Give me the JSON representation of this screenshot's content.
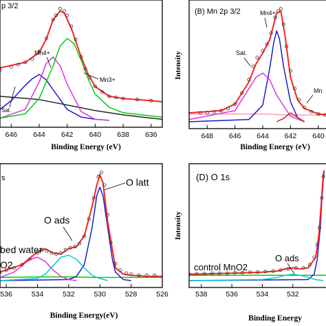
{
  "chart_data": [
    {
      "panel": "A",
      "type": "line",
      "title": "p 3/2",
      "xlabel": "Binding Energy (eV)",
      "ylabel": "",
      "xlim": [
        646.8,
        635.2
      ],
      "ylim": [
        0,
        1.05
      ],
      "x_ticks": [
        "646",
        "644",
        "642",
        "640",
        "638",
        "636"
      ],
      "annotations": [
        "Sat.",
        "Mn4+",
        "Mn3+"
      ],
      "series": [
        {
          "color": "#ff2020",
          "role": "envelope",
          "x": [
            646.8,
            645,
            644,
            643.5,
            643,
            642.5,
            642.2,
            641.7,
            641,
            640.5,
            640,
            639,
            638,
            636,
            635.2
          ],
          "y": [
            0.48,
            0.53,
            0.62,
            0.74,
            0.92,
            1.0,
            0.98,
            0.84,
            0.58,
            0.42,
            0.31,
            0.22,
            0.2,
            0.18,
            0.17
          ]
        },
        {
          "color": "#1a1acc",
          "role": "component",
          "x": [
            646.8,
            646,
            645,
            644.5,
            644,
            643.5,
            643,
            642,
            641,
            640,
            639
          ],
          "y": [
            0.1,
            0.18,
            0.32,
            0.38,
            0.42,
            0.37,
            0.28,
            0.1,
            0.03,
            0.01,
            0
          ]
        },
        {
          "color": "#dd33dd",
          "role": "component",
          "x": [
            646.8,
            645,
            644,
            643.5,
            643,
            642.5,
            642,
            641,
            640,
            639
          ],
          "y": [
            0.02,
            0.1,
            0.35,
            0.52,
            0.58,
            0.5,
            0.33,
            0.08,
            0.01,
            0
          ]
        },
        {
          "color": "#00cc00",
          "role": "component",
          "x": [
            646.8,
            645,
            644,
            643,
            642.5,
            642,
            641.5,
            641,
            640.5,
            640,
            639,
            638,
            636,
            635.2
          ],
          "y": [
            0.02,
            0.06,
            0.2,
            0.5,
            0.68,
            0.75,
            0.7,
            0.55,
            0.38,
            0.24,
            0.12,
            0.07,
            0.04,
            0.03
          ]
        },
        {
          "color": "#222222",
          "role": "background",
          "x": [
            646.8,
            644,
            642,
            640,
            638,
            636,
            635.2
          ],
          "y": [
            0.22,
            0.19,
            0.14,
            0.09,
            0.05,
            0.02,
            0.01
          ]
        }
      ],
      "markers": {
        "x": [
          646.8,
          646,
          645.5,
          645,
          644.5,
          644,
          643.5,
          643,
          642.8,
          642.5,
          642.2,
          642,
          641.7,
          641.4,
          641,
          640.7,
          640.4,
          640,
          639.5,
          639,
          638.5,
          638,
          637,
          636
        ],
        "y": [
          0.46,
          0.49,
          0.51,
          0.53,
          0.56,
          0.63,
          0.75,
          0.92,
          0.96,
          1.02,
          1.0,
          0.96,
          0.86,
          0.74,
          0.58,
          0.47,
          0.39,
          0.31,
          0.26,
          0.22,
          0.21,
          0.2,
          0.19,
          0.18
        ]
      }
    },
    {
      "panel": "B",
      "type": "line",
      "title": "(B) Mn 2p 3/2",
      "xlabel": "Binding Energy (eV)",
      "ylabel": "Intensity",
      "xlim": [
        649.3,
        639.2
      ],
      "ylim": [
        0,
        1.05
      ],
      "x_ticks": [
        "648",
        "646",
        "644",
        "642",
        "640"
      ],
      "annotations": [
        "Mn4+",
        "Sat.",
        "Mn"
      ],
      "series": [
        {
          "color": "#ff2020",
          "role": "envelope",
          "x": [
            649.3,
            647,
            646,
            645,
            644.5,
            644,
            643.5,
            643,
            642.7,
            642.4,
            642,
            641.5,
            641,
            640,
            639.2
          ],
          "y": [
            0.08,
            0.1,
            0.16,
            0.36,
            0.52,
            0.62,
            0.74,
            0.98,
            1.0,
            0.78,
            0.4,
            0.2,
            0.12,
            0.07,
            0.06
          ]
        },
        {
          "color": "#1a1acc",
          "role": "component",
          "x": [
            649.3,
            645,
            644,
            643.5,
            643.2,
            643,
            642.8,
            642.5,
            642,
            641.5,
            641
          ],
          "y": [
            0,
            0.02,
            0.15,
            0.48,
            0.72,
            0.82,
            0.75,
            0.5,
            0.18,
            0.04,
            0
          ]
        },
        {
          "color": "#dd33dd",
          "role": "component",
          "x": [
            649.3,
            646,
            645,
            644.5,
            644,
            643.5,
            643,
            642,
            641
          ],
          "y": [
            0.02,
            0.1,
            0.3,
            0.4,
            0.44,
            0.38,
            0.24,
            0.05,
            0
          ]
        },
        {
          "color": "#cc2222",
          "role": "component",
          "x": [
            643,
            642.5,
            642,
            641.5,
            641
          ],
          "y": [
            0,
            0.03,
            0.08,
            0.04,
            0
          ]
        },
        {
          "color": "#ff99bb",
          "role": "background",
          "x": [
            649.3,
            646,
            644,
            642,
            640,
            639.2
          ],
          "y": [
            0.07,
            0.07,
            0.07,
            0.06,
            0.06,
            0.06
          ]
        }
      ],
      "markers": {
        "x": [
          648.5,
          648,
          647.5,
          647,
          646.5,
          646,
          645.5,
          645,
          644.7,
          644.4,
          644,
          643.7,
          643.4,
          643.1,
          642.9,
          642.7,
          642.5,
          642.3,
          642,
          641.7,
          641.4,
          641,
          640.5,
          640,
          639.5
        ],
        "y": [
          0.08,
          0.08,
          0.09,
          0.1,
          0.12,
          0.16,
          0.26,
          0.38,
          0.5,
          0.58,
          0.64,
          0.7,
          0.8,
          0.94,
          1.0,
          1.02,
          0.88,
          0.68,
          0.46,
          0.3,
          0.2,
          0.13,
          0.09,
          0.07,
          0.06
        ]
      }
    },
    {
      "panel": "C",
      "type": "line",
      "title": "s",
      "xlabel": "Binding Energy(eV)",
      "ylabel": "",
      "xlim": [
        536.4,
        526
      ],
      "ylim": [
        0,
        1.05
      ],
      "x_ticks": [
        "536",
        "534",
        "532",
        "530",
        "528",
        "526"
      ],
      "annotations": [
        "O latt",
        "O ads",
        "bed water",
        "O2"
      ],
      "series": [
        {
          "color": "#ff2020",
          "role": "envelope",
          "x": [
            536.4,
            535,
            534,
            533.5,
            533,
            532.5,
            532,
            531.5,
            531,
            530.5,
            530.2,
            530,
            529.8,
            529.5,
            529,
            528.5,
            528,
            527,
            526
          ],
          "y": [
            0.08,
            0.15,
            0.27,
            0.3,
            0.26,
            0.25,
            0.3,
            0.32,
            0.42,
            0.7,
            0.9,
            1.0,
            0.92,
            0.55,
            0.12,
            0.06,
            0.05,
            0.04,
            0.04
          ]
        },
        {
          "color": "#1a1acc",
          "role": "component",
          "x": [
            536.4,
            532,
            531.5,
            531,
            530.5,
            530.2,
            530,
            529.8,
            529.5,
            529.2,
            529,
            528.5,
            528
          ],
          "y": [
            0,
            0.01,
            0.04,
            0.15,
            0.5,
            0.8,
            0.88,
            0.8,
            0.5,
            0.2,
            0.08,
            0.01,
            0
          ]
        },
        {
          "color": "#00cccc",
          "role": "component",
          "x": [
            536.4,
            534,
            533.5,
            533,
            532.5,
            532,
            531.5,
            531,
            530.5,
            530,
            529.5
          ],
          "y": [
            0,
            0.02,
            0.06,
            0.14,
            0.22,
            0.24,
            0.2,
            0.12,
            0.05,
            0.02,
            0
          ]
        },
        {
          "color": "#dd33dd",
          "role": "component",
          "x": [
            536.4,
            535.5,
            535,
            534.5,
            534,
            533.5,
            533,
            532.5,
            532,
            531.5
          ],
          "y": [
            0.03,
            0.08,
            0.14,
            0.2,
            0.22,
            0.18,
            0.1,
            0.04,
            0.01,
            0
          ]
        },
        {
          "color": "#00cc00",
          "role": "background",
          "x": [
            536.4,
            534,
            532,
            530,
            528,
            526
          ],
          "y": [
            0.03,
            0.035,
            0.035,
            0.03,
            0.03,
            0.03
          ]
        }
      ],
      "markers": {
        "x": [
          536.4,
          536,
          535.5,
          535,
          534.5,
          534,
          533.7,
          533.4,
          533.1,
          532.8,
          532.5,
          532.2,
          531.9,
          531.6,
          531.3,
          531,
          530.7,
          530.4,
          530.1,
          529.9,
          529.7,
          529.5,
          529.3,
          529,
          528.7,
          528.3,
          528,
          527.5,
          527,
          526.5
        ],
        "y": [
          0.08,
          0.1,
          0.12,
          0.15,
          0.2,
          0.26,
          0.29,
          0.28,
          0.26,
          0.25,
          0.26,
          0.29,
          0.31,
          0.32,
          0.35,
          0.42,
          0.58,
          0.78,
          0.98,
          1.02,
          0.9,
          0.62,
          0.36,
          0.16,
          0.1,
          0.07,
          0.06,
          0.05,
          0.05,
          0.05
        ]
      }
    },
    {
      "panel": "D",
      "type": "line",
      "title": "(D) O 1s",
      "xlabel": "Binding Energy",
      "ylabel": "Intensity",
      "xlim": [
        538.8,
        529.6
      ],
      "ylim": [
        0,
        1.05
      ],
      "x_ticks": [
        "538",
        "536",
        "534",
        "532",
        "53"
      ],
      "annotations": [
        "control MnO2",
        "O ads"
      ],
      "series": [
        {
          "color": "#ff2020",
          "role": "envelope",
          "x": [
            538.8,
            536,
            534,
            533,
            532.5,
            532,
            531.5,
            531,
            530.5,
            530.3,
            530.15,
            530.05,
            530,
            529.95
          ],
          "y": [
            0.06,
            0.07,
            0.08,
            0.09,
            0.11,
            0.12,
            0.11,
            0.12,
            0.22,
            0.42,
            0.7,
            0.9,
            1.0,
            1.04
          ]
        },
        {
          "color": "#1a1acc",
          "role": "component",
          "x": [
            538.8,
            531,
            530.6,
            530.4,
            530.2,
            530.1,
            530,
            529.95
          ],
          "y": [
            0,
            0.01,
            0.06,
            0.2,
            0.5,
            0.75,
            0.95,
            1.03
          ]
        },
        {
          "color": "#00cccc",
          "role": "component",
          "x": [
            538.8,
            534,
            533,
            532.5,
            532,
            531.5,
            531,
            530.5,
            530
          ],
          "y": [
            0,
            0.01,
            0.03,
            0.05,
            0.06,
            0.05,
            0.03,
            0.01,
            0
          ]
        },
        {
          "color": "#00cc00",
          "role": "background",
          "x": [
            538.8,
            534,
            532,
            530,
            529.6
          ],
          "y": [
            0.05,
            0.05,
            0.05,
            0.05,
            0.05
          ]
        }
      ],
      "markers": {
        "x": [
          538.8,
          538.3,
          537.8,
          537.3,
          536.8,
          536.3,
          535.8,
          535.3,
          534.8,
          534.3,
          533.8,
          533.3,
          532.8,
          532.3,
          531.8,
          531.3,
          530.9,
          530.6,
          530.4,
          530.25,
          530.1,
          530
        ],
        "y": [
          0.06,
          0.065,
          0.065,
          0.07,
          0.07,
          0.07,
          0.075,
          0.075,
          0.08,
          0.08,
          0.085,
          0.09,
          0.1,
          0.11,
          0.12,
          0.12,
          0.15,
          0.22,
          0.34,
          0.5,
          0.78,
          0.98
        ]
      }
    }
  ]
}
